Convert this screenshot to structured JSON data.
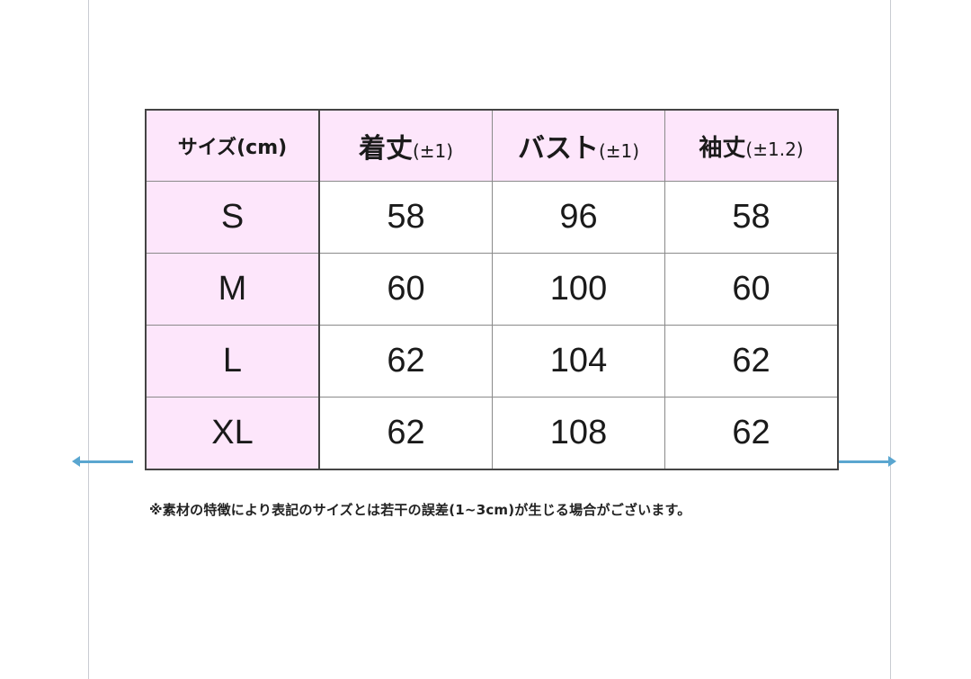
{
  "table": {
    "headers": [
      {
        "main": "サイズ(cm)",
        "tol": ""
      },
      {
        "main": "着丈",
        "tol": "(±1)"
      },
      {
        "main": "バスト",
        "tol": "(±1)"
      },
      {
        "main": "袖丈",
        "tol": "(±1.2)"
      }
    ],
    "rows": [
      {
        "size": "S",
        "length": "58",
        "bust": "96",
        "sleeve": "58"
      },
      {
        "size": "M",
        "length": "60",
        "bust": "100",
        "sleeve": "60"
      },
      {
        "size": "L",
        "length": "62",
        "bust": "104",
        "sleeve": "62"
      },
      {
        "size": "XL",
        "length": "62",
        "bust": "108",
        "sleeve": "62"
      }
    ]
  },
  "note": "※素材の特徴により表記のサイズとは若干の誤差(1~3cm)が生じる場合がございます。",
  "colors": {
    "header_bg": "#fde6fb",
    "arrow": "#5aa6d0"
  },
  "icons": [
    "arrow-left-icon",
    "arrow-right-icon"
  ]
}
